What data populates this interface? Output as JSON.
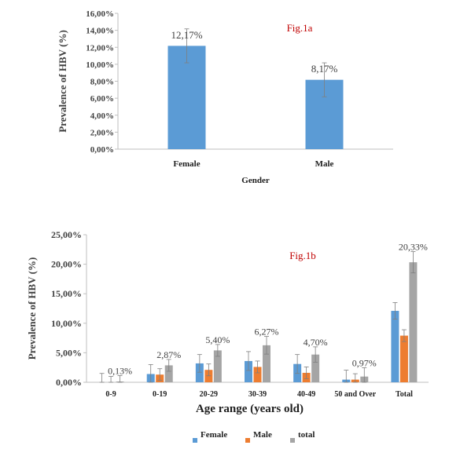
{
  "chart_data": [
    {
      "type": "bar",
      "annotation": "Fig.1a",
      "categories": [
        "Female",
        "Male"
      ],
      "values": [
        12.17,
        8.17
      ],
      "errors": [
        2.0,
        2.0
      ],
      "data_labels": [
        "12,17%",
        "8,17%"
      ],
      "xlabel": "Gender",
      "ylabel": "Prevalence of HBV (%)",
      "ylim": [
        0,
        16
      ],
      "yticks": [
        "0,00%",
        "2,00%",
        "4,00%",
        "6,00%",
        "8,00%",
        "10,00%",
        "12,00%",
        "14,00%",
        "16,00%"
      ],
      "color": "#5b9bd5",
      "grid": false
    },
    {
      "type": "bar",
      "annotation": "Fig.1b",
      "categories": [
        "0-9",
        "0-19",
        "20-29",
        "30-39",
        "40-49",
        "50 and Over",
        "Total"
      ],
      "series": [
        {
          "name": "Female",
          "color": "#5b9bd5",
          "values": [
            0.0,
            1.4,
            3.2,
            3.6,
            3.1,
            0.45,
            12.1
          ],
          "errors": [
            1.5,
            1.6,
            1.5,
            1.6,
            1.6,
            1.6,
            1.4
          ]
        },
        {
          "name": "Male",
          "color": "#ed7d31",
          "values": [
            0.0,
            1.3,
            2.1,
            2.6,
            1.6,
            0.45,
            7.9
          ],
          "errors": [
            1.0,
            1.0,
            1.0,
            1.0,
            1.0,
            1.0,
            1.0
          ]
        },
        {
          "name": "total",
          "color": "#a5a5a5",
          "values": [
            0.13,
            2.87,
            5.4,
            6.27,
            4.7,
            0.97,
            20.33
          ],
          "errors": [
            1.0,
            1.0,
            1.0,
            1.5,
            1.3,
            1.5,
            1.8
          ]
        }
      ],
      "data_labels": [
        "0,13%",
        "2,87%",
        "5,40%",
        "6,27%",
        "4,70%",
        "0,97%",
        "20,33%"
      ],
      "xlabel": "Age range (years old)",
      "ylabel": "Prevalence of HBV (%)",
      "ylim": [
        0,
        25
      ],
      "yticks": [
        "0,00%",
        "5,00%",
        "10,00%",
        "15,00%",
        "20,00%",
        "25,00%"
      ],
      "legend": "bottom",
      "grid": false
    }
  ]
}
